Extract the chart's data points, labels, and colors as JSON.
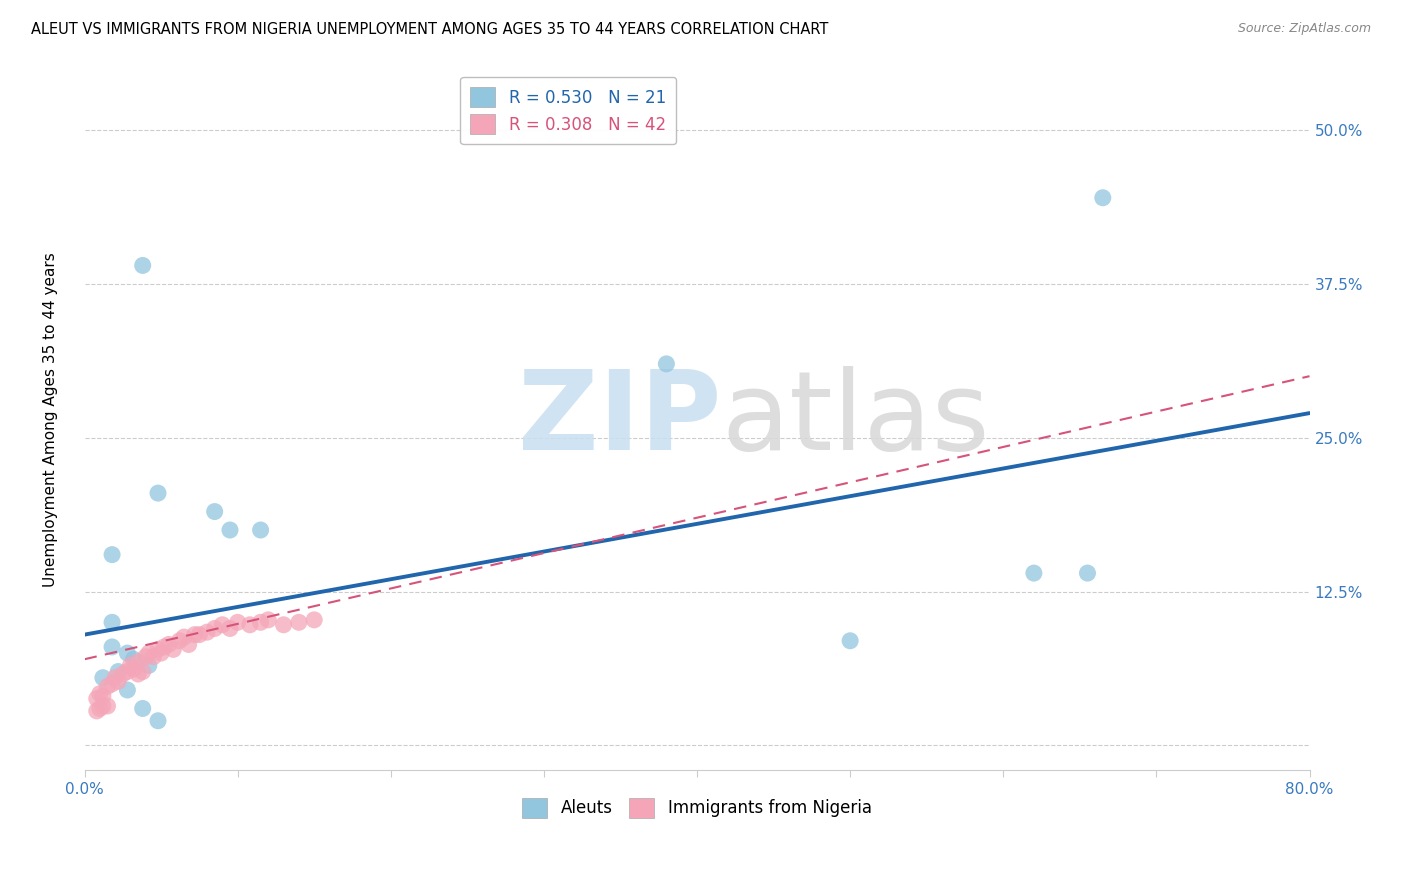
{
  "title": "ALEUT VS IMMIGRANTS FROM NIGERIA UNEMPLOYMENT AMONG AGES 35 TO 44 YEARS CORRELATION CHART",
  "source": "Source: ZipAtlas.com",
  "ylabel": "Unemployment Among Ages 35 to 44 years",
  "xlim": [
    0.0,
    0.8
  ],
  "ylim": [
    -0.02,
    0.55
  ],
  "ytick_vals": [
    0.0,
    0.125,
    0.25,
    0.375,
    0.5
  ],
  "ytick_labels": [
    "",
    "12.5%",
    "25.0%",
    "37.5%",
    "50.0%"
  ],
  "xtick_vals": [
    0.0,
    0.1,
    0.2,
    0.3,
    0.4,
    0.5,
    0.6,
    0.7,
    0.8
  ],
  "xtick_labels": [
    "0.0%",
    "",
    "",
    "",
    "",
    "",
    "",
    "",
    "80.0%"
  ],
  "aleuts_R": 0.53,
  "aleuts_N": 21,
  "nigeria_R": 0.308,
  "nigeria_N": 42,
  "aleuts_color": "#92c5de",
  "nigeria_color": "#f4a6b8",
  "aleuts_line_color": "#2166ac",
  "nigeria_line_color": "#d6537a",
  "aleuts_x": [
    0.018,
    0.038,
    0.048,
    0.085,
    0.095,
    0.115,
    0.018,
    0.028,
    0.032,
    0.042,
    0.012,
    0.022,
    0.028,
    0.038,
    0.048,
    0.5,
    0.62,
    0.655,
    0.665,
    0.38,
    0.018
  ],
  "aleuts_y": [
    0.155,
    0.39,
    0.205,
    0.19,
    0.175,
    0.175,
    0.08,
    0.075,
    0.07,
    0.065,
    0.055,
    0.06,
    0.045,
    0.03,
    0.02,
    0.085,
    0.14,
    0.14,
    0.445,
    0.31,
    0.1
  ],
  "nigeria_x": [
    0.008,
    0.01,
    0.012,
    0.015,
    0.018,
    0.02,
    0.022,
    0.025,
    0.028,
    0.03,
    0.032,
    0.035,
    0.038,
    0.04,
    0.042,
    0.045,
    0.048,
    0.05,
    0.052,
    0.055,
    0.058,
    0.062,
    0.065,
    0.068,
    0.072,
    0.075,
    0.08,
    0.085,
    0.09,
    0.095,
    0.1,
    0.108,
    0.115,
    0.12,
    0.13,
    0.14,
    0.15,
    0.008,
    0.01,
    0.012,
    0.015,
    0.035
  ],
  "nigeria_y": [
    0.038,
    0.042,
    0.04,
    0.048,
    0.05,
    0.055,
    0.052,
    0.058,
    0.06,
    0.065,
    0.062,
    0.068,
    0.06,
    0.072,
    0.075,
    0.072,
    0.078,
    0.075,
    0.08,
    0.082,
    0.078,
    0.085,
    0.088,
    0.082,
    0.09,
    0.09,
    0.092,
    0.095,
    0.098,
    0.095,
    0.1,
    0.098,
    0.1,
    0.102,
    0.098,
    0.1,
    0.102,
    0.028,
    0.03,
    0.032,
    0.032,
    0.058
  ]
}
